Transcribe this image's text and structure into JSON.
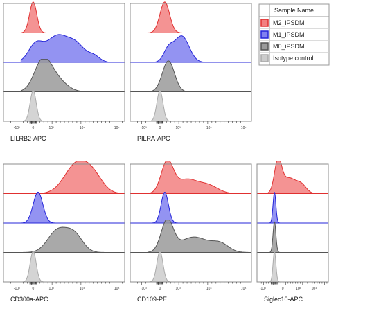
{
  "chart_data": {
    "type": "area",
    "kind": "flow-cytometry-histogram-overlay",
    "x_scale": "biexponential",
    "x_ticks": [
      "-10³",
      "0",
      "10³",
      "10⁴",
      "10⁵"
    ],
    "legend": {
      "title": "Sample Name",
      "placement": "top-right",
      "entries": [
        {
          "name": "M2_iPSDM",
          "fill": "#f28080",
          "stroke": "#e03030"
        },
        {
          "name": "M1_iPSDM",
          "fill": "#8080f0",
          "stroke": "#2424d8"
        },
        {
          "name": "M0_iPSDM",
          "fill": "#9a9a9a",
          "stroke": "#555555"
        },
        {
          "name": "Isotype control",
          "fill": "#cccccc",
          "stroke": "#aaaaaa"
        }
      ]
    },
    "track_order": [
      "M2_iPSDM",
      "M1_iPSDM",
      "M0_iPSDM",
      "Isotype control"
    ],
    "panels": [
      {
        "xlabel": "LILRB2-APC",
        "series": [
          {
            "name": "M2_iPSDM",
            "peaks": [
              {
                "x": 0.0,
                "w": 0.03,
                "h": 1.0
              }
            ]
          },
          {
            "name": "M1_iPSDM",
            "peaks": [
              {
                "x": 0.02,
                "w": 0.06,
                "h": 0.55
              },
              {
                "x": 0.2,
                "w": 0.09,
                "h": 0.85
              },
              {
                "x": 0.36,
                "w": 0.07,
                "h": 0.5
              },
              {
                "x": 0.5,
                "w": 0.05,
                "h": 0.2
              }
            ]
          },
          {
            "name": "M0_iPSDM",
            "peaks": [
              {
                "x": 0.08,
                "w": 0.07,
                "h": 1.0
              },
              {
                "x": 0.2,
                "w": 0.08,
                "h": 0.35
              }
            ]
          },
          {
            "name": "Isotype control",
            "peaks": [
              {
                "x": 0.0,
                "w": 0.025,
                "h": 1.0
              }
            ]
          }
        ]
      },
      {
        "xlabel": "PILRA-APC",
        "series": [
          {
            "name": "M2_iPSDM",
            "peaks": [
              {
                "x": 0.04,
                "w": 0.04,
                "h": 1.0
              }
            ]
          },
          {
            "name": "M1_iPSDM",
            "peaks": [
              {
                "x": 0.18,
                "w": 0.06,
                "h": 0.85
              },
              {
                "x": 0.07,
                "w": 0.04,
                "h": 0.4
              }
            ]
          },
          {
            "name": "M0_iPSDM",
            "peaks": [
              {
                "x": 0.07,
                "w": 0.05,
                "h": 1.0
              }
            ]
          },
          {
            "name": "Isotype control",
            "peaks": [
              {
                "x": 0.0,
                "w": 0.025,
                "h": 1.0
              }
            ]
          }
        ]
      },
      {
        "xlabel": "CD300a-APC",
        "series": [
          {
            "name": "M2_iPSDM",
            "peaks": [
              {
                "x": 0.36,
                "w": 0.1,
                "h": 0.95
              },
              {
                "x": 0.5,
                "w": 0.08,
                "h": 0.45
              }
            ]
          },
          {
            "name": "M1_iPSDM",
            "peaks": [
              {
                "x": 0.04,
                "w": 0.04,
                "h": 1.0
              }
            ]
          },
          {
            "name": "M0_iPSDM",
            "peaks": [
              {
                "x": 0.2,
                "w": 0.08,
                "h": 0.7
              },
              {
                "x": 0.34,
                "w": 0.07,
                "h": 0.55
              }
            ]
          },
          {
            "name": "Isotype control",
            "peaks": [
              {
                "x": 0.0,
                "w": 0.025,
                "h": 1.0
              }
            ]
          }
        ]
      },
      {
        "xlabel": "CD109-PE",
        "series": [
          {
            "name": "M2_iPSDM",
            "peaks": [
              {
                "x": 0.06,
                "w": 0.05,
                "h": 1.0
              },
              {
                "x": 0.22,
                "w": 0.09,
                "h": 0.45
              },
              {
                "x": 0.4,
                "w": 0.08,
                "h": 0.25
              }
            ]
          },
          {
            "name": "M1_iPSDM",
            "peaks": [
              {
                "x": 0.04,
                "w": 0.03,
                "h": 1.0
              }
            ]
          },
          {
            "name": "M0_iPSDM",
            "peaks": [
              {
                "x": 0.06,
                "w": 0.05,
                "h": 1.0
              },
              {
                "x": 0.28,
                "w": 0.12,
                "h": 0.5
              },
              {
                "x": 0.5,
                "w": 0.07,
                "h": 0.25
              }
            ]
          },
          {
            "name": "Isotype control",
            "peaks": [
              {
                "x": 0.0,
                "w": 0.025,
                "h": 1.0
              }
            ]
          }
        ]
      },
      {
        "xlabel": "Siglec10-APC",
        "series": [
          {
            "name": "M2_iPSDM",
            "peaks": [
              {
                "x": 0.05,
                "w": 0.05,
                "h": 1.0
              },
              {
                "x": 0.2,
                "w": 0.1,
                "h": 0.5
              },
              {
                "x": 0.38,
                "w": 0.07,
                "h": 0.25
              }
            ]
          },
          {
            "name": "M1_iPSDM",
            "peaks": [
              {
                "x": 0.0,
                "w": 0.02,
                "h": 1.0
              }
            ]
          },
          {
            "name": "M0_iPSDM",
            "peaks": [
              {
                "x": 0.0,
                "w": 0.02,
                "h": 1.0
              }
            ]
          },
          {
            "name": "Isotype control",
            "peaks": [
              {
                "x": 0.0,
                "w": 0.02,
                "h": 1.0
              }
            ]
          }
        ]
      }
    ]
  }
}
